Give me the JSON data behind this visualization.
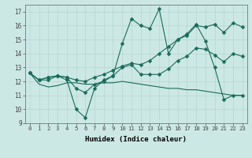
{
  "xlabel": "Humidex (Indice chaleur)",
  "bg_color": "#cce8e4",
  "grid_color": "#b8d4d0",
  "line_color": "#1a6b5a",
  "xlim": [
    -0.5,
    23.5
  ],
  "ylim": [
    9,
    17.5
  ],
  "xticks": [
    0,
    1,
    2,
    3,
    4,
    5,
    6,
    7,
    8,
    9,
    10,
    11,
    12,
    13,
    14,
    15,
    16,
    17,
    18,
    19,
    20,
    21,
    22,
    23
  ],
  "yticks": [
    9,
    10,
    11,
    12,
    13,
    14,
    15,
    16,
    17
  ],
  "series": [
    {
      "y": [
        12.6,
        12.1,
        12.1,
        12.4,
        12.1,
        10.0,
        9.4,
        11.5,
        12.1,
        12.4,
        14.7,
        16.5,
        16.0,
        15.8,
        17.2,
        14.0,
        15.0,
        15.4,
        16.1,
        14.9,
        13.0,
        10.7,
        11.0,
        11.0
      ],
      "marker": "D",
      "markersize": 2.5
    },
    {
      "y": [
        12.6,
        12.1,
        12.3,
        12.4,
        12.3,
        12.1,
        12.0,
        12.3,
        12.5,
        12.8,
        13.1,
        13.3,
        13.2,
        13.5,
        14.0,
        14.5,
        15.0,
        15.3,
        16.0,
        15.9,
        16.1,
        15.5,
        16.2,
        15.9
      ],
      "marker": "D",
      "markersize": 2.5
    },
    {
      "y": [
        12.6,
        11.8,
        11.6,
        11.7,
        11.9,
        11.9,
        11.8,
        11.8,
        11.9,
        11.9,
        12.0,
        11.9,
        11.8,
        11.7,
        11.6,
        11.5,
        11.5,
        11.4,
        11.4,
        11.3,
        11.2,
        11.1,
        11.0,
        11.0
      ],
      "marker": null,
      "markersize": 0
    },
    {
      "y": [
        12.6,
        12.1,
        12.3,
        12.4,
        12.3,
        11.5,
        11.2,
        11.8,
        12.0,
        12.4,
        13.0,
        13.2,
        12.5,
        12.5,
        12.5,
        12.9,
        13.5,
        13.8,
        14.4,
        14.3,
        13.9,
        13.4,
        14.0,
        13.8
      ],
      "marker": "D",
      "markersize": 2.5
    }
  ]
}
